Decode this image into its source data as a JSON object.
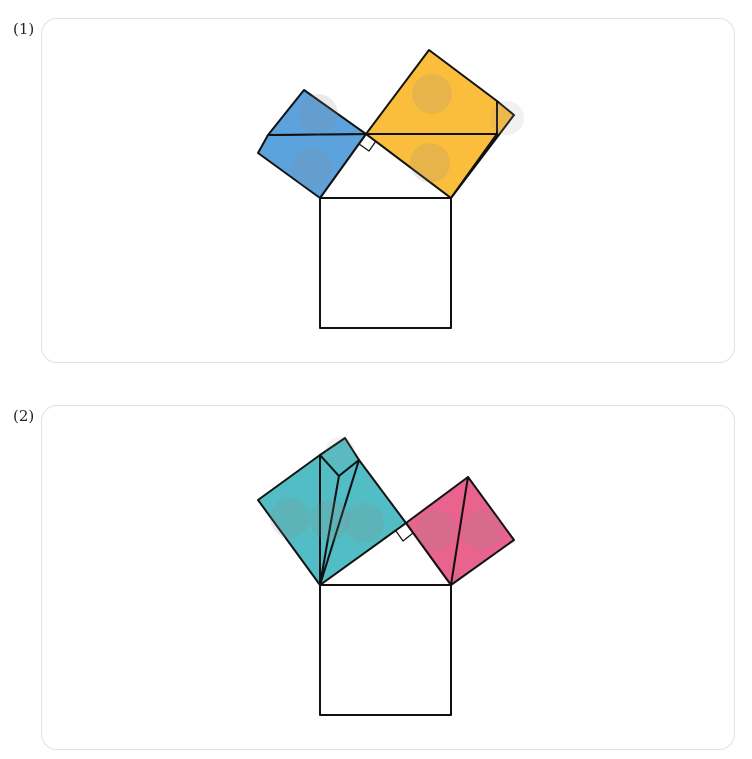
{
  "panels": [
    {
      "label": "(1)"
    },
    {
      "label": "(2)"
    }
  ],
  "colors": {
    "blue": "#5ca3dd",
    "orange": "#fbbe3c",
    "teal": "#52bdc4",
    "pink": "#e9638f",
    "outline": "#111111",
    "card_border": "#e2e2e2",
    "handle": "#9e9e9e"
  }
}
